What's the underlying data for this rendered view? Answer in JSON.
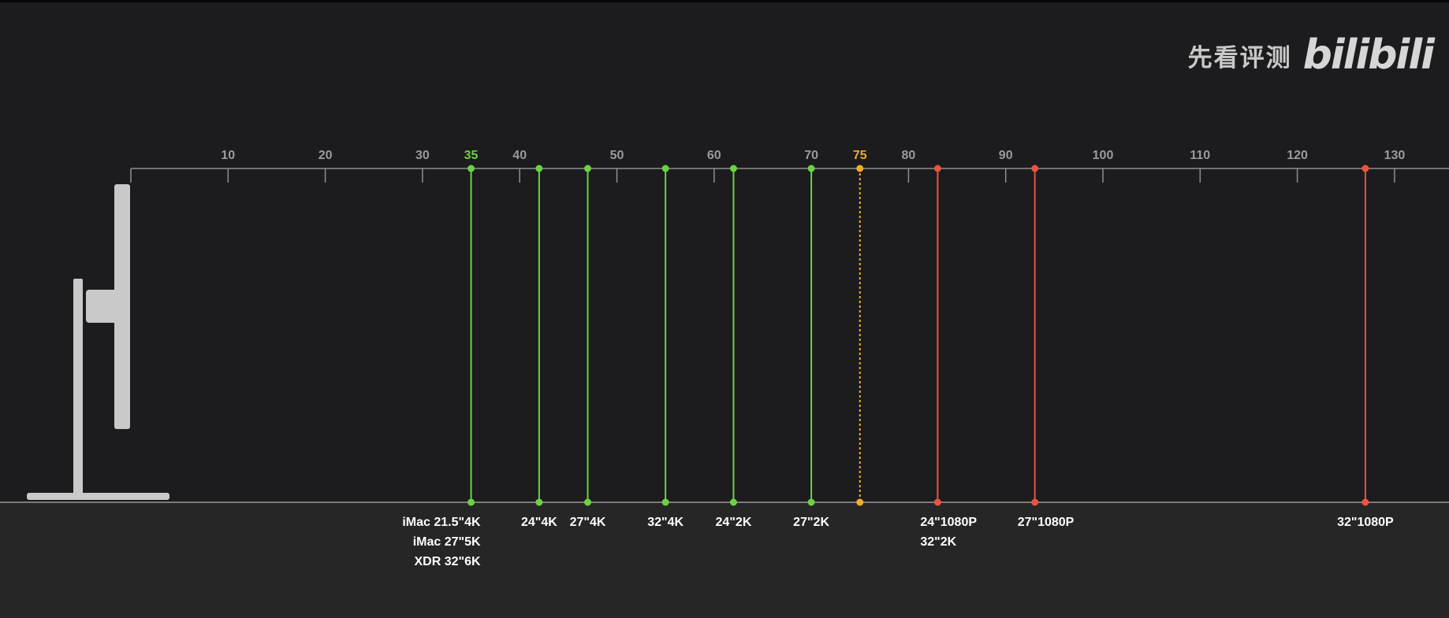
{
  "watermark": {
    "channel": "先看评测",
    "logo": "bilibili"
  },
  "chart_data": {
    "type": "scatter",
    "xlim": [
      0,
      135
    ],
    "ticks": [
      10,
      20,
      30,
      35,
      40,
      50,
      60,
      70,
      75,
      80,
      90,
      100,
      110,
      120,
      130
    ],
    "highlight_ticks": [
      {
        "value": 35,
        "color": "#6ad344"
      },
      {
        "value": 75,
        "color": "#f0aa2c"
      }
    ],
    "threshold": {
      "value": 75,
      "color": "#f0aa2c",
      "style": "dotted"
    },
    "markers": [
      {
        "x": 35,
        "color": "#6ad344",
        "labels": [
          "iMac 21.5\"4K",
          "iMac 27\"5K",
          "XDR 32\"6K"
        ],
        "align": "right"
      },
      {
        "x": 42,
        "color": "#6ad344",
        "labels": [
          "24\"4K"
        ],
        "align": "center"
      },
      {
        "x": 47,
        "color": "#6ad344",
        "labels": [
          "27\"4K"
        ],
        "align": "center"
      },
      {
        "x": 55,
        "color": "#6ad344",
        "labels": [
          "32\"4K"
        ],
        "align": "center"
      },
      {
        "x": 62,
        "color": "#6ad344",
        "labels": [
          "24\"2K"
        ],
        "align": "center"
      },
      {
        "x": 70,
        "color": "#6ad344",
        "labels": [
          "27\"2K"
        ],
        "align": "center"
      },
      {
        "x": 83,
        "color": "#e9543f",
        "labels": [
          "24\"1080P",
          "32\"2K"
        ],
        "align": "left"
      },
      {
        "x": 93,
        "color": "#e9543f",
        "labels": [
          "27\"1080P"
        ],
        "align": "left"
      },
      {
        "x": 127,
        "color": "#e9543f",
        "labels": [
          "32\"1080P"
        ],
        "align": "center"
      }
    ]
  }
}
